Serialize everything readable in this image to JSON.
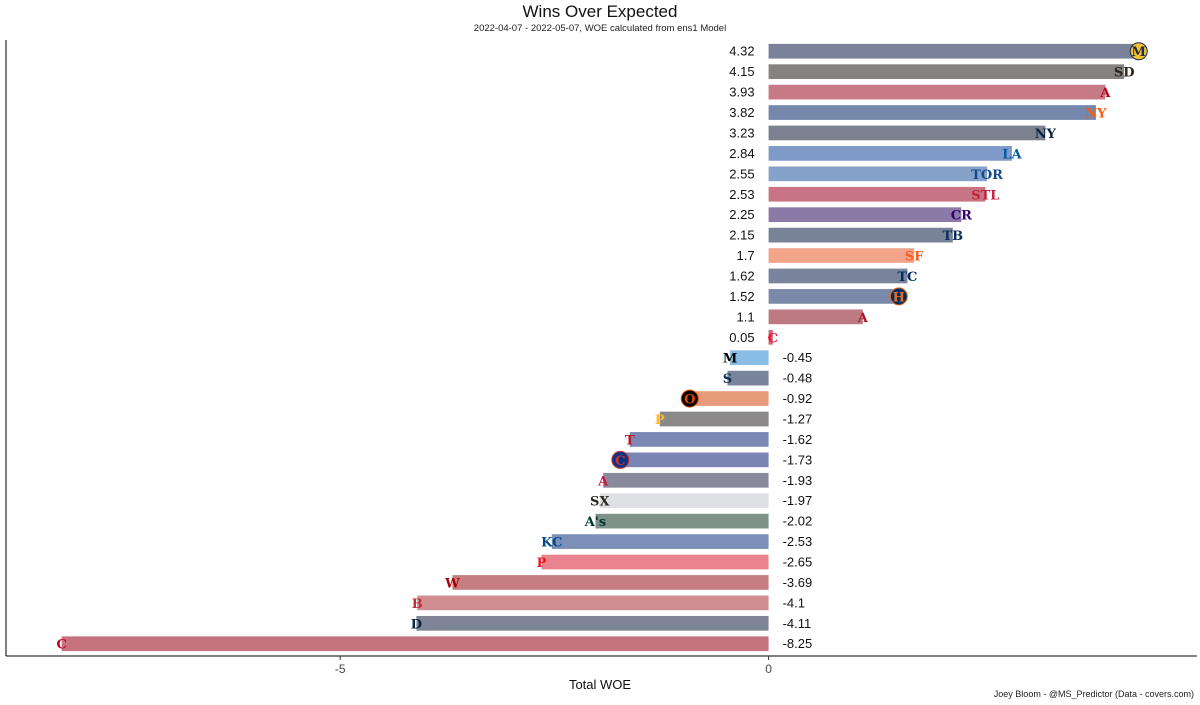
{
  "chart_data": {
    "type": "bar",
    "orientation": "horizontal",
    "title": "Wins Over Expected",
    "subtitle": "2022-04-07 - 2022-05-07, WOE calculated from ens1 Model",
    "xlabel": "Total WOE",
    "ylabel": "",
    "caption": "Joey Bloom - @MS_Predictor (Data - covers.com)",
    "xlim": [
      -8.9,
      5.0
    ],
    "xticks": [
      -5,
      0
    ],
    "grid": false,
    "legend": "none",
    "bars": [
      {
        "value": 4.32,
        "label": "4.32",
        "color": "#7a8299",
        "logo": "M",
        "logo_color": "#1b2a4a",
        "logo_bg": "#f2c230"
      },
      {
        "value": 4.15,
        "label": "4.15",
        "color": "#858282",
        "logo": "SD",
        "logo_color": "#2b241c",
        "logo_bg": "#ffffff"
      },
      {
        "value": 3.93,
        "label": "3.93",
        "color": "#c77a86",
        "logo": "A",
        "logo_color": "#ba0021",
        "logo_bg": "#ffffff"
      },
      {
        "value": 3.82,
        "label": "3.82",
        "color": "#7587ab",
        "logo": "NY",
        "logo_color": "#ff5910",
        "logo_bg": "#ffffff"
      },
      {
        "value": 3.23,
        "label": "3.23",
        "color": "#7c8190",
        "logo": "NY",
        "logo_color": "#0c2340",
        "logo_bg": "#ffffff"
      },
      {
        "value": 2.84,
        "label": "2.84",
        "color": "#7f9ac8",
        "logo": "LA",
        "logo_color": "#005a9c",
        "logo_bg": "#ffffff"
      },
      {
        "value": 2.55,
        "label": "2.55",
        "color": "#86a2c9",
        "logo": "TOR",
        "logo_color": "#134a8e",
        "logo_bg": "#ffffff"
      },
      {
        "value": 2.53,
        "label": "2.53",
        "color": "#c97484",
        "logo": "STL",
        "logo_color": "#c41e3a",
        "logo_bg": "#ffffff"
      },
      {
        "value": 2.25,
        "label": "2.25",
        "color": "#8b7aa8",
        "logo": "CR",
        "logo_color": "#33006f",
        "logo_bg": "#ffffff"
      },
      {
        "value": 2.15,
        "label": "2.15",
        "color": "#788398",
        "logo": "TB",
        "logo_color": "#092c5c",
        "logo_bg": "#ffffff"
      },
      {
        "value": 1.7,
        "label": "1.7",
        "color": "#f2a58a",
        "logo": "SF",
        "logo_color": "#fd5a1e",
        "logo_bg": "#ffffff"
      },
      {
        "value": 1.62,
        "label": "1.62",
        "color": "#7a849c",
        "logo": "TC",
        "logo_color": "#002b5c",
        "logo_bg": "#ffffff"
      },
      {
        "value": 1.52,
        "label": "1.52",
        "color": "#7b8aa8",
        "logo": "H",
        "logo_color": "#eb6e1f",
        "logo_bg": "#002d62"
      },
      {
        "value": 1.1,
        "label": "1.1",
        "color": "#be7a83",
        "logo": "A",
        "logo_color": "#a71930",
        "logo_bg": "#ffffff"
      },
      {
        "value": 0.05,
        "label": "0.05",
        "color": "#cf6a7a",
        "logo": "C",
        "logo_color": "#e31937",
        "logo_bg": "#ffffff"
      },
      {
        "value": -0.45,
        "label": "-0.45",
        "color": "#89bde6",
        "logo": "M",
        "logo_color": "#000000",
        "logo_bg": "#ffffff"
      },
      {
        "value": -0.48,
        "label": "-0.48",
        "color": "#7a849a",
        "logo": "S",
        "logo_color": "#0c2c56",
        "logo_bg": "#ffffff"
      },
      {
        "value": -0.92,
        "label": "-0.92",
        "color": "#e69a7a",
        "logo": "O",
        "logo_color": "#df4601",
        "logo_bg": "#000000"
      },
      {
        "value": -1.27,
        "label": "-1.27",
        "color": "#8a8888",
        "logo": "P",
        "logo_color": "#fdb827",
        "logo_bg": "#ffffff"
      },
      {
        "value": -1.62,
        "label": "-1.62",
        "color": "#7b88b3",
        "logo": "T",
        "logo_color": "#c0111f",
        "logo_bg": "#ffffff"
      },
      {
        "value": -1.73,
        "label": "-1.73",
        "color": "#7b85b3",
        "logo": "C",
        "logo_color": "#cc3433",
        "logo_bg": "#0e3386"
      },
      {
        "value": -1.93,
        "label": "-1.93",
        "color": "#888a9c",
        "logo": "A",
        "logo_color": "#ce1141",
        "logo_bg": "#ffffff"
      },
      {
        "value": -1.97,
        "label": "-1.97",
        "color": "#dfe0e4",
        "logo": "SX",
        "logo_color": "#27251f",
        "logo_bg": "#ffffff"
      },
      {
        "value": -2.02,
        "label": "-2.02",
        "color": "#7e928a",
        "logo": "A's",
        "logo_color": "#003831",
        "logo_bg": "#ffffff"
      },
      {
        "value": -2.53,
        "label": "-2.53",
        "color": "#7a90b8",
        "logo": "KC",
        "logo_color": "#004687",
        "logo_bg": "#ffffff"
      },
      {
        "value": -2.65,
        "label": "-2.65",
        "color": "#e8848e",
        "logo": "P",
        "logo_color": "#e81828",
        "logo_bg": "#ffffff"
      },
      {
        "value": -3.69,
        "label": "-3.69",
        "color": "#c47e80",
        "logo": "W",
        "logo_color": "#ab0003",
        "logo_bg": "#ffffff"
      },
      {
        "value": -4.1,
        "label": "-4.1",
        "color": "#d08e93",
        "logo": "B",
        "logo_color": "#bd3039",
        "logo_bg": "#ffffff"
      },
      {
        "value": -4.11,
        "label": "-4.11",
        "color": "#7d8596",
        "logo": "D",
        "logo_color": "#0c2340",
        "logo_bg": "#ffffff"
      },
      {
        "value": -8.25,
        "label": "-8.25",
        "color": "#c7727f",
        "logo": "C",
        "logo_color": "#c6011f",
        "logo_bg": "#ffffff"
      }
    ]
  }
}
